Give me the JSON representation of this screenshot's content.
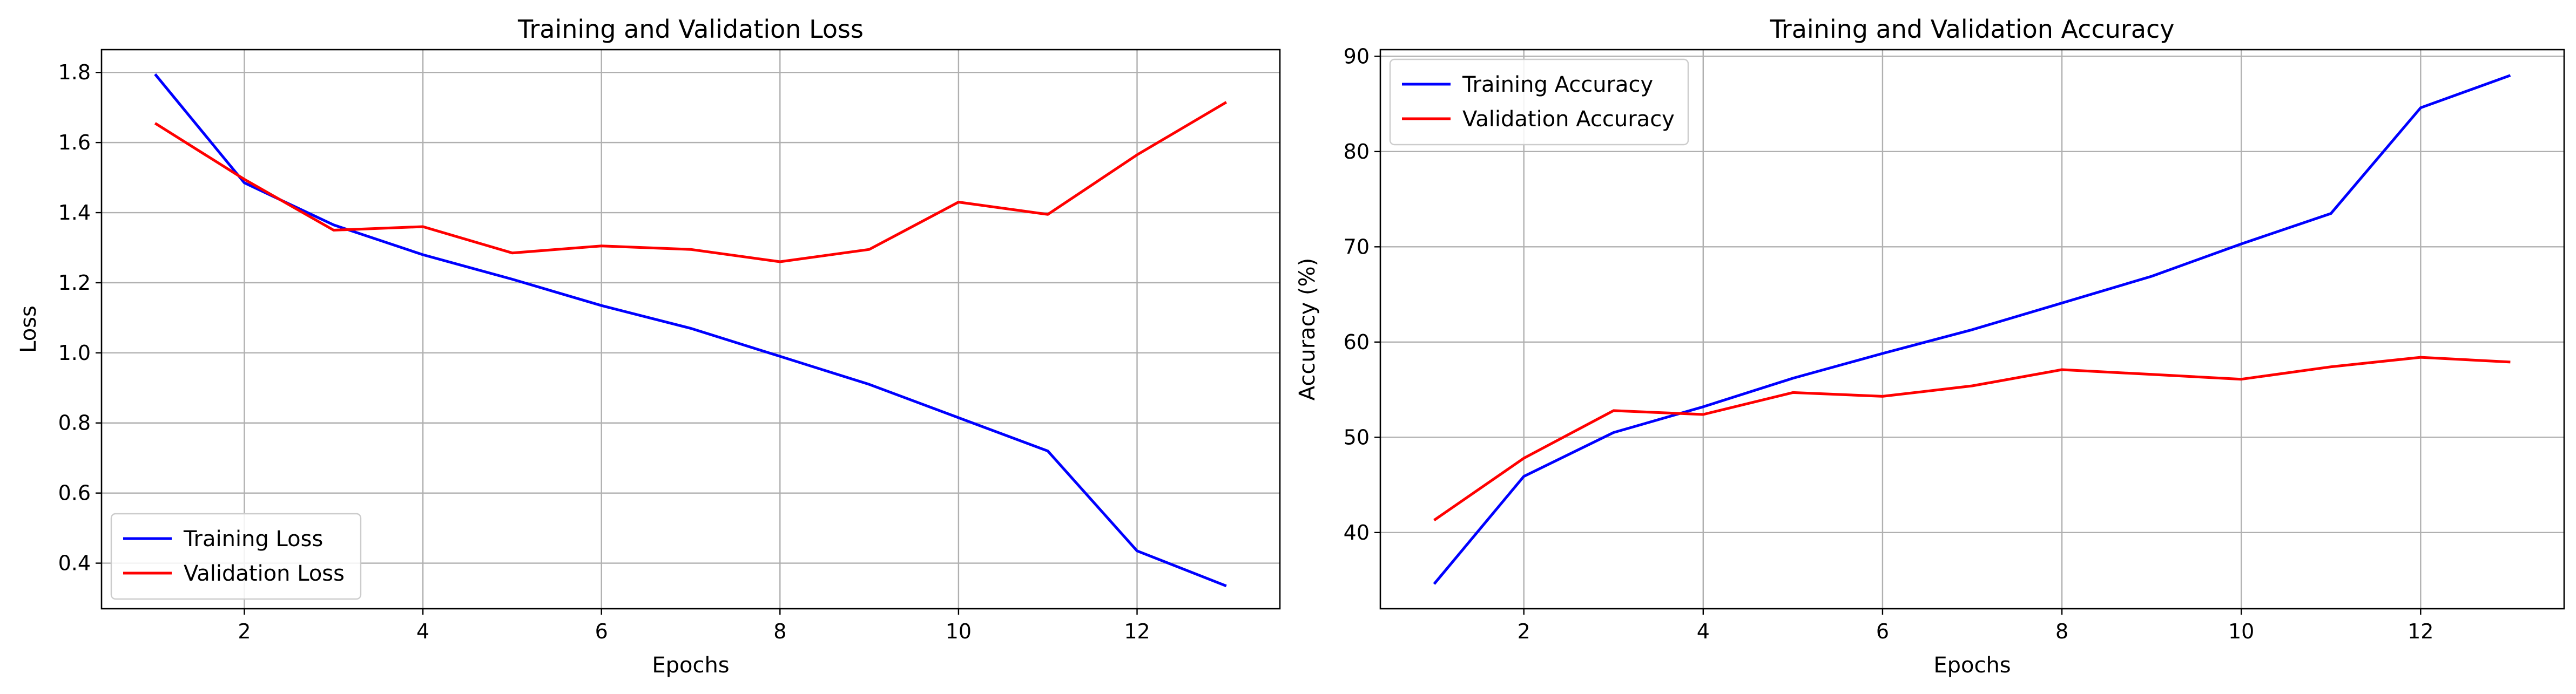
{
  "chart_data": [
    {
      "type": "line",
      "title": "Training and Validation Loss",
      "xlabel": "Epochs",
      "ylabel": "Loss",
      "xlim": [
        0.4,
        13.6
      ],
      "ylim": [
        0.27,
        1.865
      ],
      "xticks": [
        2,
        4,
        6,
        8,
        10,
        12
      ],
      "yticks": [
        0.4,
        0.6,
        0.8,
        1.0,
        1.2,
        1.4,
        1.6,
        1.8
      ],
      "ytick_labels": [
        "0.4",
        "0.6",
        "0.8",
        "1.0",
        "1.2",
        "1.4",
        "1.6",
        "1.8"
      ],
      "grid": true,
      "legend_position": "lower-left",
      "x": [
        1,
        2,
        3,
        4,
        5,
        6,
        7,
        8,
        9,
        10,
        11,
        12,
        13
      ],
      "series": [
        {
          "name": "Training Loss",
          "color": "#0000ff",
          "values": [
            1.795,
            1.485,
            1.365,
            1.28,
            1.21,
            1.135,
            1.07,
            0.99,
            0.91,
            0.815,
            0.72,
            0.435,
            0.335
          ]
        },
        {
          "name": "Validation Loss",
          "color": "#ff0000",
          "values": [
            1.655,
            1.495,
            1.35,
            1.36,
            1.285,
            1.305,
            1.295,
            1.26,
            1.295,
            1.43,
            1.395,
            1.565,
            1.715
          ]
        }
      ]
    },
    {
      "type": "line",
      "title": "Training and Validation Accuracy",
      "xlabel": "Epochs",
      "ylabel": "Accuracy (%)",
      "xlim": [
        0.4,
        13.6
      ],
      "ylim": [
        32.0,
        90.7
      ],
      "xticks": [
        2,
        4,
        6,
        8,
        10,
        12
      ],
      "yticks": [
        40,
        50,
        60,
        70,
        80,
        90
      ],
      "ytick_labels": [
        "40",
        "50",
        "60",
        "70",
        "80",
        "90"
      ],
      "grid": true,
      "legend_position": "top-left",
      "x": [
        1,
        2,
        3,
        4,
        5,
        6,
        7,
        8,
        9,
        10,
        11,
        12,
        13
      ],
      "series": [
        {
          "name": "Training Accuracy",
          "color": "#0000ff",
          "values": [
            34.6,
            45.9,
            50.5,
            53.2,
            56.2,
            58.8,
            61.3,
            64.1,
            66.9,
            70.3,
            73.5,
            84.6,
            88.0
          ]
        },
        {
          "name": "Validation Accuracy",
          "color": "#ff0000",
          "values": [
            41.3,
            47.8,
            52.8,
            52.4,
            54.7,
            54.3,
            55.4,
            57.1,
            56.6,
            56.1,
            57.4,
            58.4,
            57.9
          ]
        }
      ]
    }
  ]
}
